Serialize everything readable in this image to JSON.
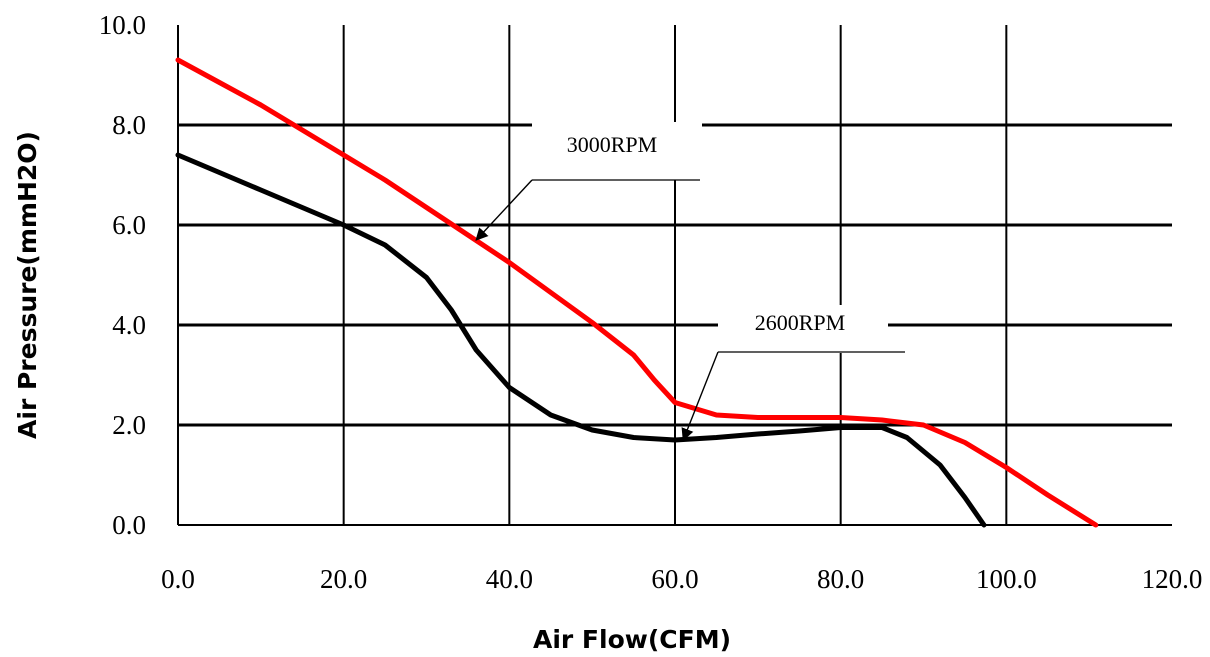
{
  "chart_data": {
    "type": "line",
    "title": "",
    "xlabel": "Air Flow(CFM)",
    "ylabel": "Air Pressure(mmH2O)",
    "xlim": [
      0,
      120
    ],
    "ylim": [
      0,
      10
    ],
    "x_ticks": [
      "0.0",
      "20.0",
      "40.0",
      "60.0",
      "80.0",
      "100.0",
      "120.0"
    ],
    "y_ticks": [
      "0.0",
      "2.0",
      "4.0",
      "6.0",
      "8.0",
      "10.0"
    ],
    "grid": true,
    "colors": {
      "series_3000": "#ff0000",
      "series_2600": "#000000",
      "grid": "#000000"
    },
    "series": [
      {
        "name": "3000RPM",
        "x": [
          0,
          5,
          10,
          15,
          20,
          25,
          30,
          35,
          40,
          45,
          50,
          55,
          57.5,
          60,
          65,
          70,
          80,
          85,
          90,
          95,
          100,
          105,
          110.8
        ],
        "y": [
          9.3,
          8.85,
          8.4,
          7.9,
          7.4,
          6.9,
          6.35,
          5.8,
          5.25,
          4.65,
          4.05,
          3.4,
          2.9,
          2.45,
          2.2,
          2.15,
          2.15,
          2.1,
          2.0,
          1.65,
          1.15,
          0.6,
          0.0
        ]
      },
      {
        "name": "2600RPM",
        "x": [
          0,
          5,
          10,
          15,
          20,
          25,
          30,
          33,
          36,
          40,
          45,
          50,
          55,
          60,
          65,
          70,
          75,
          80,
          85,
          88,
          92,
          95,
          97.3
        ],
        "y": [
          7.4,
          7.05,
          6.7,
          6.35,
          6.0,
          5.6,
          4.95,
          4.3,
          3.5,
          2.75,
          2.2,
          1.9,
          1.75,
          1.7,
          1.75,
          1.82,
          1.88,
          1.95,
          1.95,
          1.75,
          1.2,
          0.55,
          0.0
        ]
      }
    ],
    "annotations": [
      {
        "text": "3000RPM",
        "series": "3000RPM",
        "arrow_to": [
          36,
          5.7
        ]
      },
      {
        "text": "2600RPM",
        "series": "2600RPM",
        "arrow_to": [
          61,
          1.7
        ]
      }
    ]
  }
}
